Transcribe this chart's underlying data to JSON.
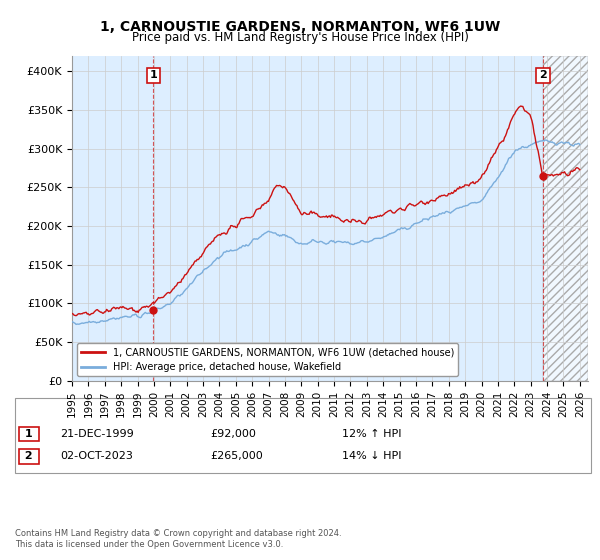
{
  "title": "1, CARNOUSTIE GARDENS, NORMANTON, WF6 1UW",
  "subtitle": "Price paid vs. HM Land Registry's House Price Index (HPI)",
  "ylim": [
    0,
    420000
  ],
  "yticks": [
    0,
    50000,
    100000,
    150000,
    200000,
    250000,
    300000,
    350000,
    400000
  ],
  "ytick_labels": [
    "£0",
    "£50K",
    "£100K",
    "£150K",
    "£200K",
    "£250K",
    "£300K",
    "£350K",
    "£400K"
  ],
  "hpi_color": "#7aaddc",
  "price_color": "#cc1111",
  "bg_fill_color": "#ddeeff",
  "background_color": "#ffffff",
  "grid_color": "#cccccc",
  "t1_x": 1999.97,
  "t1_y": 92000,
  "t2_x": 2023.75,
  "t2_y": 265000,
  "transaction1_date": "21-DEC-1999",
  "transaction1_price": "£92,000",
  "transaction1_hpi": "12% ↑ HPI",
  "transaction2_date": "02-OCT-2023",
  "transaction2_price": "£265,000",
  "transaction2_hpi": "14% ↓ HPI",
  "legend_property": "1, CARNOUSTIE GARDENS, NORMANTON, WF6 1UW (detached house)",
  "legend_hpi": "HPI: Average price, detached house, Wakefield",
  "footer": "Contains HM Land Registry data © Crown copyright and database right 2024.\nThis data is licensed under the Open Government Licence v3.0.",
  "xmin": 1995.0,
  "xmax": 2026.5,
  "xtick_years": [
    1995,
    1996,
    1997,
    1998,
    1999,
    2000,
    2001,
    2002,
    2003,
    2004,
    2005,
    2006,
    2007,
    2008,
    2009,
    2010,
    2011,
    2012,
    2013,
    2014,
    2015,
    2016,
    2017,
    2018,
    2019,
    2020,
    2021,
    2022,
    2023,
    2024,
    2025,
    2026
  ]
}
